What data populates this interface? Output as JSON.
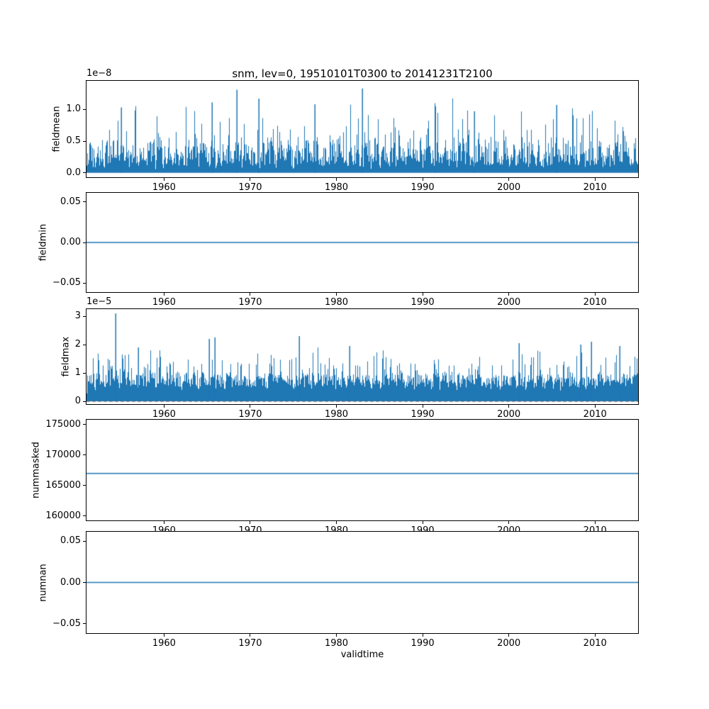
{
  "title": "snm, lev=0, 19510101T0300 to 20141231T2100",
  "xlabel": "validtime",
  "line_color": "#1f77b4",
  "background_color": "#ffffff",
  "x_axis": {
    "range": [
      1951,
      2015
    ],
    "ticks": [
      {
        "value": 1960,
        "label": "1960"
      },
      {
        "value": 1970,
        "label": "1970"
      },
      {
        "value": 1980,
        "label": "1980"
      },
      {
        "value": 1990,
        "label": "1990"
      },
      {
        "value": 2000,
        "label": "2000"
      },
      {
        "value": 2010,
        "label": "2010"
      }
    ]
  },
  "chart_data": [
    {
      "name": "fieldmean",
      "type": "line",
      "ylabel": "fieldmean",
      "offset_label": "1e−8",
      "unit_scale": 1e-08,
      "ylim": [
        -0.07,
        1.45
      ],
      "yticks": [
        {
          "value": 0.0,
          "label": "0.0"
        },
        {
          "value": 0.5,
          "label": "0.5"
        },
        {
          "value": 1.0,
          "label": "1.0"
        }
      ],
      "series_kind": "dense_noisy_spikes",
      "baseline_band": [
        0.0,
        0.35
      ],
      "typical_peak_band": [
        0.5,
        1.1
      ],
      "max_value": 1.33,
      "notable_peaks": [
        {
          "year": 1955.0,
          "value": 1.03
        },
        {
          "year": 1965.6,
          "value": 1.11
        },
        {
          "year": 1968.4,
          "value": 1.31
        },
        {
          "year": 1971.0,
          "value": 1.17
        },
        {
          "year": 1977.5,
          "value": 1.08
        },
        {
          "year": 1983.0,
          "value": 1.33
        },
        {
          "year": 1991.5,
          "value": 1.05
        },
        {
          "year": 1996.0,
          "value": 0.97
        },
        {
          "year": 2005.5,
          "value": 1.07
        }
      ],
      "seed": 42,
      "comb": {
        "min": 0.3,
        "pow": 0.6
      },
      "amp": {
        "base": 0.1,
        "rand": 0.45,
        "spike": 0.85,
        "spike_pow": 9
      }
    },
    {
      "name": "fieldmin",
      "type": "line",
      "ylabel": "fieldmin",
      "ylim": [
        -0.0614,
        0.0614
      ],
      "yticks": [
        {
          "value": -0.05,
          "label": "−0.05"
        },
        {
          "value": 0.0,
          "label": "0.00"
        },
        {
          "value": 0.05,
          "label": "0.05"
        }
      ],
      "series_kind": "constant",
      "constant_value": 0.0
    },
    {
      "name": "fieldmax",
      "type": "line",
      "ylabel": "fieldmax",
      "offset_label": "1e−5",
      "unit_scale": 1e-05,
      "ylim": [
        -0.1,
        3.25
      ],
      "yticks": [
        {
          "value": 0,
          "label": "0"
        },
        {
          "value": 1,
          "label": "1"
        },
        {
          "value": 2,
          "label": "2"
        },
        {
          "value": 3,
          "label": "3"
        }
      ],
      "series_kind": "dense_noisy_spikes",
      "baseline_band": [
        0.0,
        1.1
      ],
      "typical_peak_band": [
        1.2,
        2.3
      ],
      "max_value": 3.1,
      "zero_line": {
        "dashed": true,
        "color": "#555555"
      },
      "notable_peaks": [
        {
          "year": 1954.4,
          "value": 3.1
        },
        {
          "year": 1957.0,
          "value": 1.9
        },
        {
          "year": 1965.2,
          "value": 2.2
        },
        {
          "year": 1965.9,
          "value": 2.25
        },
        {
          "year": 1975.7,
          "value": 2.3
        },
        {
          "year": 1981.5,
          "value": 1.95
        },
        {
          "year": 2001.2,
          "value": 2.05
        },
        {
          "year": 2008.3,
          "value": 2.0
        },
        {
          "year": 2009.6,
          "value": 2.1
        },
        {
          "year": 2012.9,
          "value": 1.95
        }
      ],
      "seed": 7,
      "comb": {
        "min": 0.55,
        "pow": 0.4
      },
      "amp": {
        "base": 0.5,
        "rand": 0.55,
        "spike": 1.1,
        "spike_pow": 7
      }
    },
    {
      "name": "nummasked",
      "type": "line",
      "ylabel": "nummasked",
      "ylim": [
        159300,
        175800
      ],
      "yticks": [
        {
          "value": 160000,
          "label": "160000"
        },
        {
          "value": 165000,
          "label": "165000"
        },
        {
          "value": 170000,
          "label": "170000"
        },
        {
          "value": 175000,
          "label": "175000"
        }
      ],
      "series_kind": "constant",
      "constant_value": 167000
    },
    {
      "name": "numnan",
      "type": "line",
      "ylabel": "numnan",
      "ylim": [
        -0.0614,
        0.0614
      ],
      "yticks": [
        {
          "value": -0.05,
          "label": "−0.05"
        },
        {
          "value": 0.0,
          "label": "0.00"
        },
        {
          "value": 0.05,
          "label": "0.05"
        }
      ],
      "series_kind": "constant",
      "constant_value": 0.0
    }
  ]
}
